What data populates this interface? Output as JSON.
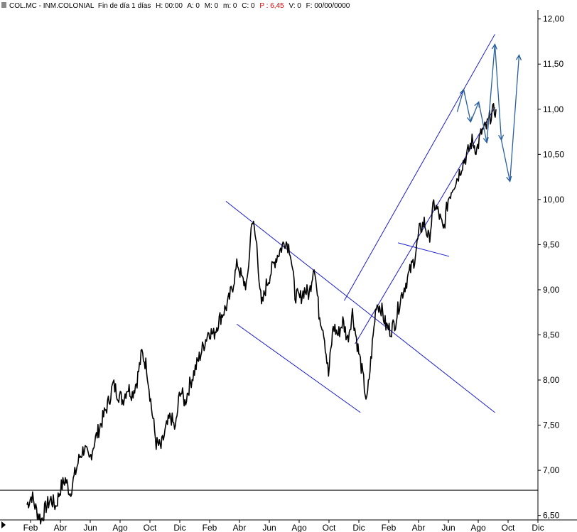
{
  "header": {
    "symbol": "COL.MC - INM.COLONIAL",
    "period": "Fin de día 1 días",
    "h": "H: 00:00",
    "a": "A: 0",
    "m": "M: 0",
    "mm": "m: 0",
    "c": "C: 0",
    "p": "P : 6,45",
    "v": "V: 0",
    "f": "F: 00/00/0000"
  },
  "colors": {
    "price": "#000000",
    "channel": "#1a1acc",
    "arrows": "#2a5fa0",
    "header_highlight": "#e00000"
  },
  "chart_data": {
    "type": "line",
    "ylim": [
      6.45,
      12.1
    ],
    "yticks": [
      "12,00",
      "11,50",
      "11,00",
      "10,50",
      "10,00",
      "9,50",
      "9,00",
      "8,50",
      "8,00",
      "7,50",
      "7,00",
      "6,50"
    ],
    "ytick_values": [
      12.0,
      11.5,
      11.0,
      10.5,
      10.0,
      9.5,
      9.0,
      8.5,
      8.0,
      7.5,
      7.0,
      6.5
    ],
    "x_ticks": [
      "Feb",
      "Abr",
      "Jun",
      "Ago",
      "Oct",
      "Dic",
      "Feb",
      "Abr",
      "Jun",
      "Ago",
      "Oct",
      "Dic",
      "Feb",
      "Abr",
      "Jun",
      "Ago",
      "Oct",
      "Dic"
    ],
    "support_line": 6.78,
    "series": [
      {
        "values": [
          6.62,
          6.72,
          6.55,
          6.45,
          6.6,
          6.68,
          6.6,
          6.8,
          6.9,
          6.75,
          6.95,
          7.15,
          7.25,
          7.1,
          7.3,
          7.45,
          7.6,
          7.75,
          7.95,
          7.85,
          7.78,
          7.92,
          7.85,
          8.0,
          8.3,
          8.15,
          7.7,
          7.3,
          7.25,
          7.45,
          7.6,
          7.45,
          7.9,
          7.75,
          7.95,
          8.1,
          8.25,
          8.4,
          8.55,
          8.5,
          8.65,
          8.75,
          8.85,
          9.05,
          9.3,
          9.1,
          9.05,
          9.8,
          9.5,
          8.8,
          9.05,
          9.2,
          9.35,
          9.45,
          9.55,
          9.45,
          8.95,
          8.9,
          9.0,
          8.95,
          9.3,
          8.75,
          8.55,
          8.05,
          8.6,
          8.5,
          8.65,
          8.45,
          8.75,
          8.4,
          8.1,
          7.75,
          8.3,
          8.85,
          8.8,
          8.6,
          8.55,
          8.65,
          8.9,
          9.05,
          9.2,
          9.35,
          9.65,
          9.75,
          9.55,
          9.95,
          9.85,
          9.65,
          10.0,
          10.15,
          10.25,
          10.4,
          10.5,
          10.65,
          10.55,
          10.75,
          10.8,
          10.95,
          11.0
        ]
      }
    ],
    "channels": [
      {
        "name": "descending-upper",
        "from": [
          0.42,
          9.98
        ],
        "to": [
          0.92,
          7.64
        ]
      },
      {
        "name": "descending-lower",
        "from": [
          0.44,
          8.62
        ],
        "to": [
          0.67,
          7.64
        ]
      },
      {
        "name": "ascending-upper",
        "from": [
          0.64,
          8.88
        ],
        "to": [
          0.92,
          11.83
        ]
      },
      {
        "name": "ascending-lower",
        "from": [
          0.66,
          8.4
        ],
        "to": [
          0.92,
          11.02
        ]
      },
      {
        "name": "small-support",
        "from": [
          0.74,
          9.52
        ],
        "to": [
          0.835,
          9.37
        ]
      }
    ],
    "projection": [
      [
        0.85,
        10.97
      ],
      [
        0.862,
        11.22
      ],
      [
        0.875,
        10.86
      ],
      [
        0.89,
        11.08
      ],
      [
        0.905,
        10.63
      ],
      [
        0.92,
        11.72
      ],
      [
        0.932,
        10.66
      ],
      [
        0.948,
        10.2
      ],
      [
        0.965,
        11.6
      ]
    ]
  }
}
